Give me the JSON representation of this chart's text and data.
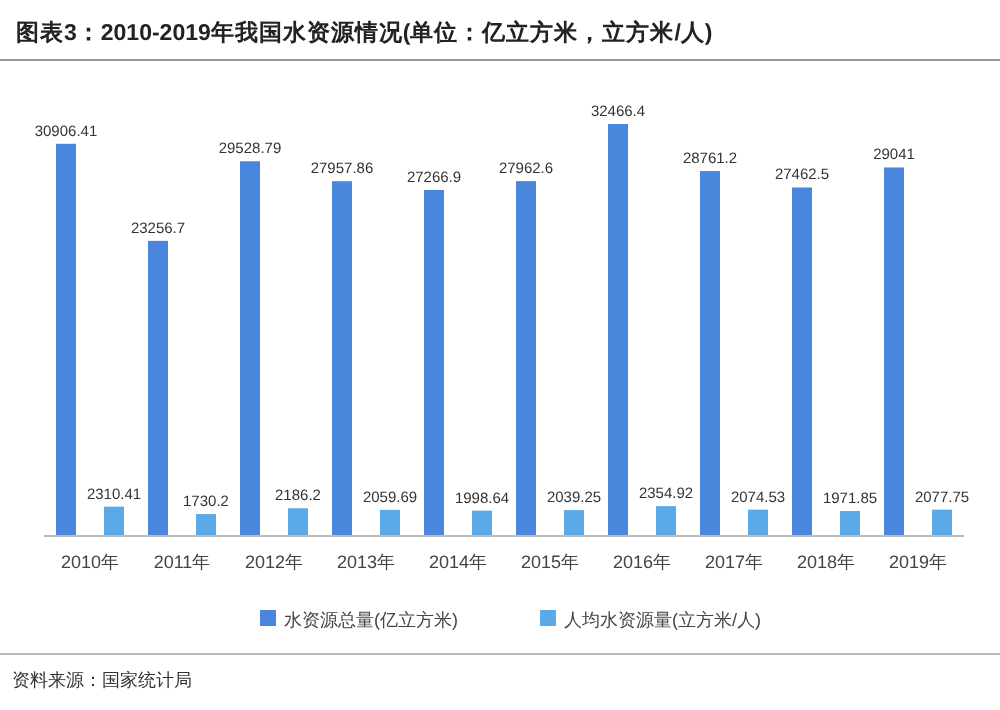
{
  "chart_data": {
    "type": "bar",
    "title": "图表3：2010-2019年我国水资源情况(单位：亿立方米，立方米/人)",
    "categories": [
      "2010年",
      "2011年",
      "2012年",
      "2013年",
      "2014年",
      "2015年",
      "2016年",
      "2017年",
      "2018年",
      "2019年"
    ],
    "series": [
      {
        "name": "水资源总量(亿立方米)",
        "color": "#4a86db",
        "values": [
          30906.41,
          23256.7,
          29528.79,
          27957.86,
          27266.9,
          27962.6,
          32466.4,
          28761.2,
          27462.5,
          29041
        ]
      },
      {
        "name": "人均水资源量(立方米/人)",
        "color": "#5aaae8",
        "values": [
          2310.41,
          1730.2,
          2186.2,
          2059.69,
          1998.64,
          2039.25,
          2354.92,
          2074.53,
          1971.85,
          2077.75
        ]
      }
    ],
    "data_labels": true,
    "legend": "bottom",
    "annotations": [
      "资料来源：国家统计局"
    ]
  }
}
